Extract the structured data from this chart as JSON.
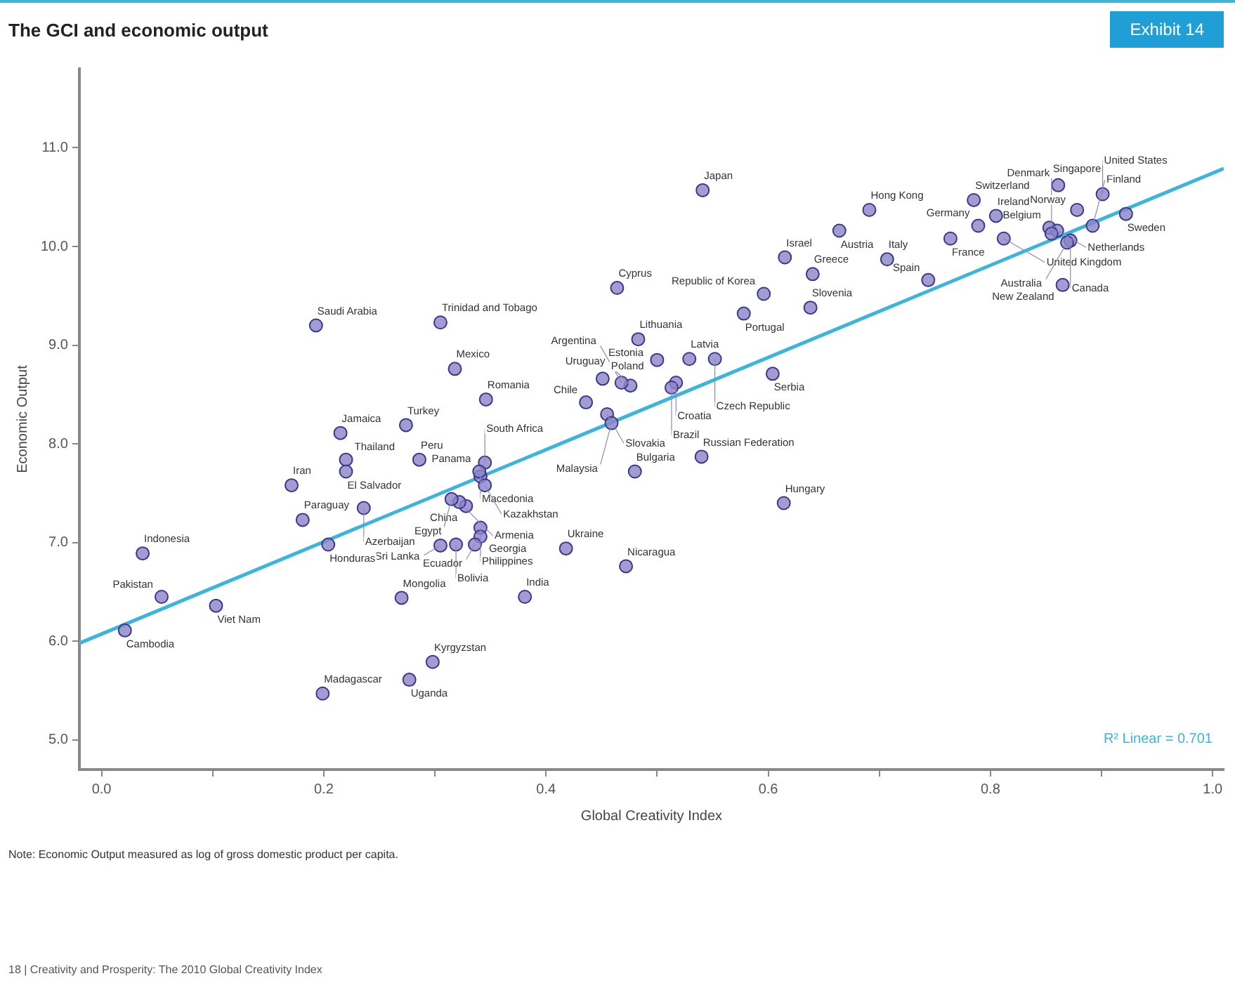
{
  "chart_data": {
    "type": "scatter",
    "title": "The GCI and economic output",
    "xlabel": "Global Creativity Index",
    "ylabel": "Economic Output",
    "xlim": [
      -0.02,
      1.01
    ],
    "ylim": [
      4.7,
      11.8
    ],
    "xticks": [
      {
        "value": 0,
        "label": "0.0"
      },
      {
        "value": 0.1,
        "label": null
      },
      {
        "value": 0.2,
        "label": "0.2"
      },
      {
        "value": 0.3,
        "label": null
      },
      {
        "value": 0.4,
        "label": "0.4"
      },
      {
        "value": 0.5,
        "label": null
      },
      {
        "value": 0.6,
        "label": "0.6"
      },
      {
        "value": 0.7,
        "label": null
      },
      {
        "value": 0.8,
        "label": "0.8"
      },
      {
        "value": 0.9,
        "label": null
      },
      {
        "value": 1,
        "label": "1.0"
      }
    ],
    "yticks": [
      {
        "value": 5,
        "label": "5.0"
      },
      {
        "value": 6,
        "label": "6.0"
      },
      {
        "value": 7,
        "label": "7.0"
      },
      {
        "value": 8,
        "label": "8.0"
      },
      {
        "value": 9,
        "label": "9.0"
      },
      {
        "value": 10,
        "label": "10.0"
      },
      {
        "value": 11,
        "label": "11.0"
      }
    ],
    "grid": false,
    "legend": false,
    "marker": "circle",
    "series": [
      {
        "color": "#8a84c6",
        "x": [
          0.037,
          0.054,
          0.021,
          0.103,
          0.181,
          0.171,
          0.22,
          0.22,
          0.215,
          0.236,
          0.274,
          0.286,
          0.318,
          0.193,
          0.305,
          0.346,
          0.345,
          0.341,
          0.345,
          0.34,
          0.328,
          0.322,
          0.315,
          0.341,
          0.341,
          0.336,
          0.319,
          0.305,
          0.204,
          0.199,
          0.27,
          0.277,
          0.298,
          0.381,
          0.418,
          0.472,
          0.48,
          0.54,
          0.614,
          0.638,
          0.596,
          0.604,
          0.552,
          0.529,
          0.517,
          0.464,
          0.5,
          0.483,
          0.476,
          0.468,
          0.451,
          0.436,
          0.455,
          0.459,
          0.513,
          0.541,
          0.578,
          0.615,
          0.64,
          0.664,
          0.691,
          0.707,
          0.744,
          0.764,
          0.789,
          0.785,
          0.805,
          0.812,
          0.853,
          0.86,
          0.855,
          0.861,
          0.878,
          0.872,
          0.869,
          0.865,
          0.892,
          0.901,
          0.922
        ],
        "values": [
          6.89,
          6.45,
          6.11,
          6.36,
          7.23,
          7.58,
          7.84,
          7.72,
          8.11,
          7.35,
          8.19,
          7.84,
          8.76,
          9.2,
          9.23,
          8.45,
          7.81,
          7.67,
          7.58,
          7.72,
          7.37,
          7.41,
          7.44,
          7.15,
          7.06,
          6.98,
          6.98,
          6.97,
          6.98,
          5.47,
          6.44,
          5.61,
          5.79,
          6.45,
          6.94,
          6.76,
          7.72,
          7.87,
          7.4,
          9.38,
          9.52,
          8.71,
          8.86,
          8.86,
          8.62,
          9.58,
          8.85,
          9.06,
          8.59,
          8.62,
          8.66,
          8.42,
          8.3,
          8.21,
          8.57,
          10.57,
          9.32,
          9.89,
          9.72,
          10.16,
          10.37,
          9.87,
          9.66,
          10.08,
          10.21,
          10.47,
          10.31,
          10.08,
          10.19,
          10.16,
          10.13,
          10.62,
          10.37,
          10.06,
          10.04,
          9.61,
          10.21,
          10.53,
          10.33
        ]
      },
      {
        "type": "line",
        "marker": "none",
        "color": "#3db4dc",
        "x": [
          -0.02,
          1.01
        ],
        "values": [
          5.98,
          10.79
        ]
      }
    ],
    "annotations": [
      "Exhibit 14",
      "R² Linear = 0.701",
      "Note: Economic Output measured as log of gross domestic product per capita.",
      "18 | Creativity and Prosperity: The 2010 Global Creativity Index",
      {
        "text": "Indonesia",
        "x": 0.037,
        "y": 6.89
      },
      {
        "text": "Pakistan",
        "x": 0.054,
        "y": 6.45
      },
      {
        "text": "Cambodia",
        "x": 0.021,
        "y": 6.11
      },
      {
        "text": "Viet Nam",
        "x": 0.103,
        "y": 6.36
      },
      {
        "text": "Paraguay",
        "x": 0.181,
        "y": 7.23
      },
      {
        "text": "Iran",
        "x": 0.171,
        "y": 7.58
      },
      {
        "text": "Thailand",
        "x": 0.22,
        "y": 7.84
      },
      {
        "text": "El Salvador",
        "x": 0.22,
        "y": 7.72
      },
      {
        "text": "Jamaica",
        "x": 0.215,
        "y": 8.11
      },
      {
        "text": "Azerbaijan",
        "x": 0.236,
        "y": 7.35
      },
      {
        "text": "Turkey",
        "x": 0.274,
        "y": 8.19
      },
      {
        "text": "Peru",
        "x": 0.286,
        "y": 7.84
      },
      {
        "text": "Mexico",
        "x": 0.318,
        "y": 8.76
      },
      {
        "text": "Saudi Arabia",
        "x": 0.193,
        "y": 9.2
      },
      {
        "text": "Trinidad and Tobago",
        "x": 0.305,
        "y": 9.23
      },
      {
        "text": "Romania",
        "x": 0.346,
        "y": 8.45
      },
      {
        "text": "South Africa",
        "x": 0.345,
        "y": 7.81
      },
      {
        "text": "Macedonia",
        "x": 0.341,
        "y": 7.67
      },
      {
        "text": "Kazakhstan",
        "x": 0.345,
        "y": 7.58
      },
      {
        "text": "Panama",
        "x": 0.34,
        "y": 7.72
      },
      {
        "text": "China",
        "x": 0.328,
        "y": 7.37
      },
      {
        "text": "Armenia",
        "x": 0.322,
        "y": 7.41
      },
      {
        "text": "Egypt",
        "x": 0.315,
        "y": 7.44
      },
      {
        "text": "Philippines",
        "x": 0.341,
        "y": 7.15
      },
      {
        "text": "Georgia",
        "x": 0.341,
        "y": 7.06
      },
      {
        "text": "Ecuador",
        "x": 0.336,
        "y": 6.98
      },
      {
        "text": "Bolivia",
        "x": 0.319,
        "y": 6.98
      },
      {
        "text": "Sri Lanka",
        "x": 0.305,
        "y": 6.97
      },
      {
        "text": "Honduras",
        "x": 0.204,
        "y": 6.98
      },
      {
        "text": "Madagascar",
        "x": 0.199,
        "y": 5.47
      },
      {
        "text": "Mongolia",
        "x": 0.27,
        "y": 6.44
      },
      {
        "text": "Uganda",
        "x": 0.277,
        "y": 5.61
      },
      {
        "text": "Kyrgyzstan",
        "x": 0.298,
        "y": 5.79
      },
      {
        "text": "India",
        "x": 0.381,
        "y": 6.45
      },
      {
        "text": "Ukraine",
        "x": 0.418,
        "y": 6.94
      },
      {
        "text": "Nicaragua",
        "x": 0.472,
        "y": 6.76
      },
      {
        "text": "Bulgaria",
        "x": 0.48,
        "y": 7.72
      },
      {
        "text": "Russian Federation",
        "x": 0.54,
        "y": 7.87
      },
      {
        "text": "Hungary",
        "x": 0.614,
        "y": 7.4
      },
      {
        "text": "Slovenia",
        "x": 0.638,
        "y": 9.38
      },
      {
        "text": "Republic of Korea",
        "x": 0.596,
        "y": 9.52
      },
      {
        "text": "Serbia",
        "x": 0.604,
        "y": 8.71
      },
      {
        "text": "Czech Republic",
        "x": 0.552,
        "y": 8.86
      },
      {
        "text": "Latvia",
        "x": 0.529,
        "y": 8.86
      },
      {
        "text": "Croatia",
        "x": 0.517,
        "y": 8.62
      },
      {
        "text": "Cyprus",
        "x": 0.464,
        "y": 9.58
      },
      {
        "text": "Estonia",
        "x": 0.5,
        "y": 8.85
      },
      {
        "text": "Lithuania",
        "x": 0.483,
        "y": 9.06
      },
      {
        "text": "Uruguay",
        "x": 0.476,
        "y": 8.59
      },
      {
        "text": "Argentina",
        "x": 0.468,
        "y": 8.62
      },
      {
        "text": "Poland",
        "x": 0.451,
        "y": 8.66
      },
      {
        "text": "Chile",
        "x": 0.436,
        "y": 8.42
      },
      {
        "text": "Slovakia",
        "x": 0.455,
        "y": 8.3
      },
      {
        "text": "Malaysia",
        "x": 0.459,
        "y": 8.21
      },
      {
        "text": "Brazil",
        "x": 0.513,
        "y": 8.57
      },
      {
        "text": "Japan",
        "x": 0.541,
        "y": 10.57
      },
      {
        "text": "Portugal",
        "x": 0.578,
        "y": 9.32
      },
      {
        "text": "Israel",
        "x": 0.615,
        "y": 9.89
      },
      {
        "text": "Greece",
        "x": 0.64,
        "y": 9.72
      },
      {
        "text": "Austria",
        "x": 0.664,
        "y": 10.16
      },
      {
        "text": "Hong Kong",
        "x": 0.691,
        "y": 10.37
      },
      {
        "text": "Italy",
        "x": 0.707,
        "y": 9.87
      },
      {
        "text": "Spain",
        "x": 0.744,
        "y": 9.66
      },
      {
        "text": "France",
        "x": 0.764,
        "y": 10.08
      },
      {
        "text": "Germany",
        "x": 0.789,
        "y": 10.21
      },
      {
        "text": "Switzerland",
        "x": 0.785,
        "y": 10.47
      },
      {
        "text": "Ireland",
        "x": 0.805,
        "y": 10.31
      },
      {
        "text": "United Kingdom",
        "x": 0.812,
        "y": 10.08
      },
      {
        "text": "Belgium",
        "x": 0.853,
        "y": 10.19
      },
      {
        "text": "Netherlands",
        "x": 0.86,
        "y": 10.16
      },
      {
        "text": "Singapore",
        "x": 0.855,
        "y": 10.13
      },
      {
        "text": "Denmark",
        "x": 0.861,
        "y": 10.62
      },
      {
        "text": "Norway",
        "x": 0.878,
        "y": 10.37
      },
      {
        "text": "Canada",
        "x": 0.872,
        "y": 10.06
      },
      {
        "text": "Australia",
        "x": 0.869,
        "y": 10.04
      },
      {
        "text": "New Zealand",
        "x": 0.865,
        "y": 9.61
      },
      {
        "text": "Finland",
        "x": 0.892,
        "y": 10.21
      },
      {
        "text": "United States",
        "x": 0.901,
        "y": 10.53
      },
      {
        "text": "Sweden",
        "x": 0.922,
        "y": 10.33
      }
    ]
  }
}
